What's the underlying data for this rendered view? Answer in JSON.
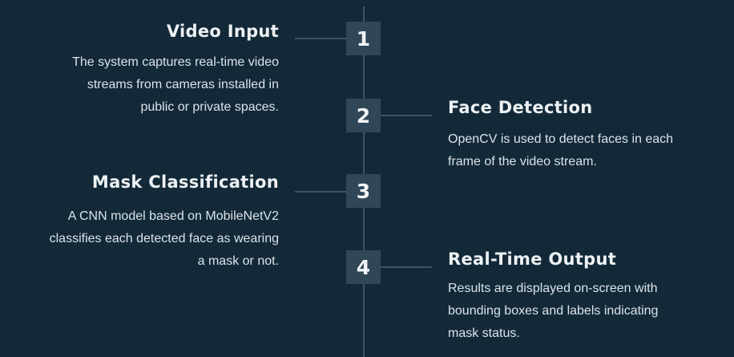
{
  "steps": [
    {
      "number": "1",
      "title": "Video Input",
      "description_lines": [
        "The system captures real-time video",
        "streams from cameras installed in",
        "public or private spaces."
      ]
    },
    {
      "number": "2",
      "title": "Face Detection",
      "description_lines": [
        "OpenCV is used to detect faces in each",
        "frame of the video stream."
      ]
    },
    {
      "number": "3",
      "title": "Mask Classification",
      "description_lines": [
        "A CNN model based on MobileNetV2",
        "classifies each detected face as wearing",
        "a mask or not."
      ]
    },
    {
      "number": "4",
      "title": "Real-Time Output",
      "description_lines": [
        "Results are displayed on-screen with",
        "bounding boxes and labels indicating",
        "mask status."
      ]
    }
  ],
  "colors": {
    "background": "#132938",
    "badge": "#2f4757",
    "line": "#3c5566",
    "title_text": "#eef1f3",
    "body_text": "#dbe3e8"
  }
}
